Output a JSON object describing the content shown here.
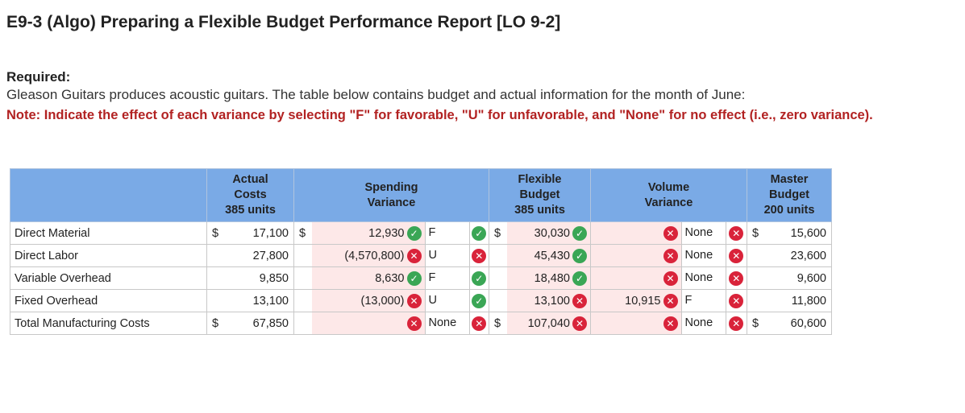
{
  "title": "E9-3 (Algo) Preparing a Flexible Budget Performance Report [LO 9-2]",
  "required_label": "Required:",
  "required_text": "Gleason Guitars produces acoustic guitars. The table below contains budget and actual information for the month of June:",
  "note": "Note: Indicate the effect of each variance by selecting \"F\" for favorable, \"U\" for unfavorable, and \"None\" for no effect (i.e., zero variance).",
  "headers": {
    "actual": [
      "Actual",
      "Costs",
      "385 units"
    ],
    "spending": [
      "Spending",
      "Variance"
    ],
    "flexible": [
      "Flexible",
      "Budget",
      "385 units"
    ],
    "volume": [
      "Volume",
      "Variance"
    ],
    "master": [
      "Master",
      "Budget",
      "200 units"
    ]
  },
  "currency_symbol": "$",
  "rows": [
    {
      "label": "Direct Material",
      "actual": "17,100",
      "spend_val": "12,930",
      "spend_val_icon": "check-icon",
      "spend_effect": "F",
      "spend_effect_icon": "check-icon",
      "flex": "30,030",
      "flex_icon": "check-icon",
      "vol_val": "",
      "vol_val_icon": "cross-icon",
      "vol_effect": "None",
      "vol_effect_icon": "cross-icon",
      "master": "15,600"
    },
    {
      "label": "Direct Labor",
      "actual": "27,800",
      "spend_val": "(4,570,800)",
      "spend_val_icon": "cross-icon",
      "spend_effect": "U",
      "spend_effect_icon": "cross-icon",
      "flex": "45,430",
      "flex_icon": "check-icon",
      "vol_val": "",
      "vol_val_icon": "cross-icon",
      "vol_effect": "None",
      "vol_effect_icon": "cross-icon",
      "master": "23,600"
    },
    {
      "label": "Variable Overhead",
      "actual": "9,850",
      "spend_val": "8,630",
      "spend_val_icon": "check-icon",
      "spend_effect": "F",
      "spend_effect_icon": "check-icon",
      "flex": "18,480",
      "flex_icon": "check-icon",
      "vol_val": "",
      "vol_val_icon": "cross-icon",
      "vol_effect": "None",
      "vol_effect_icon": "cross-icon",
      "master": "9,600"
    },
    {
      "label": "Fixed Overhead",
      "actual": "13,100",
      "spend_val": "(13,000)",
      "spend_val_icon": "cross-icon",
      "spend_effect": "U",
      "spend_effect_icon": "check-icon",
      "flex": "13,100",
      "flex_icon": "cross-icon",
      "vol_val": "10,915",
      "vol_val_icon": "cross-icon",
      "vol_effect": "F",
      "vol_effect_icon": "cross-icon",
      "master": "11,800"
    },
    {
      "label": "Total Manufacturing Costs",
      "actual": "67,850",
      "spend_val": "",
      "spend_val_icon": "cross-icon",
      "spend_effect": "None",
      "spend_effect_icon": "cross-icon",
      "flex": "107,040",
      "flex_icon": "cross-icon",
      "vol_val": "",
      "vol_val_icon": "cross-icon",
      "vol_effect": "None",
      "vol_effect_icon": "cross-icon",
      "master": "60,600"
    }
  ]
}
